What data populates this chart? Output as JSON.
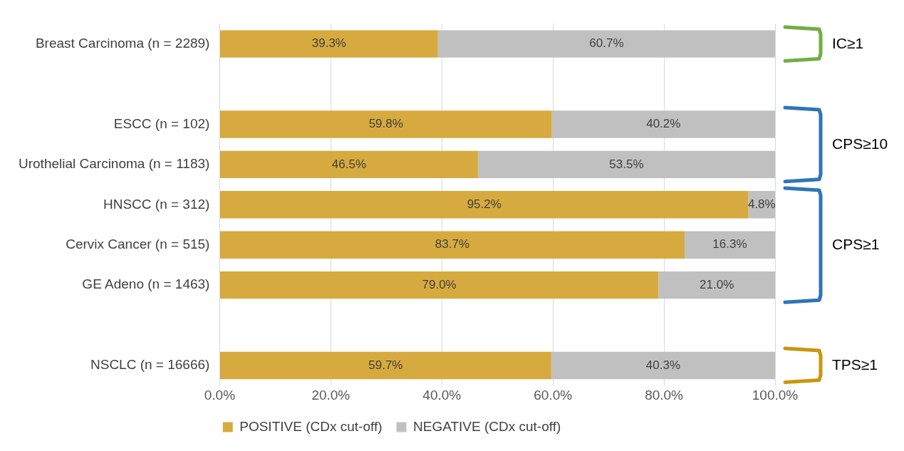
{
  "chart_data": {
    "type": "bar",
    "orientation": "horizontal",
    "stacked": true,
    "categories": [
      "Breast Carcinoma (n = 2289)",
      null,
      "ESCC (n = 102)",
      "Urothelial Carcinoma (n = 1183)",
      "HNSCC (n = 312)",
      "Cervix Cancer (n = 515)",
      "GE Adeno (n = 1463)",
      null,
      "NSCLC (n = 16666)"
    ],
    "series": [
      {
        "name": "POSITIVE (CDx cut-off)",
        "color": "#d6aa3e",
        "values": [
          39.3,
          null,
          59.8,
          46.5,
          95.2,
          83.7,
          79.0,
          null,
          59.7
        ],
        "value_labels": [
          "39.3%",
          null,
          "59.8%",
          "46.5%",
          "95.2%",
          "83.7%",
          "79.0%",
          null,
          "59.7%"
        ]
      },
      {
        "name": "NEGATIVE (CDx cut-off)",
        "color": "#c0c0c0",
        "values": [
          60.7,
          null,
          40.2,
          53.5,
          4.8,
          16.3,
          21.0,
          null,
          40.3
        ],
        "value_labels": [
          "60.7%",
          null,
          "40.2%",
          "53.5%",
          "4.8%",
          "16.3%",
          "21.0%",
          null,
          "40.3%"
        ]
      }
    ],
    "xlim": [
      0,
      100
    ],
    "xticks": [
      {
        "value": 0,
        "label": "0.0%"
      },
      {
        "value": 20,
        "label": "20.0%"
      },
      {
        "value": 40,
        "label": "40.0%"
      },
      {
        "value": 60,
        "label": "60.0%"
      },
      {
        "value": 80,
        "label": "80.0%"
      },
      {
        "value": 100,
        "label": "100.0%"
      }
    ],
    "grid": "x",
    "legend": "bottom",
    "annotations": [
      "IC≥1",
      "CPS≥10",
      "CPS≥1",
      "TPS≥1"
    ]
  }
}
